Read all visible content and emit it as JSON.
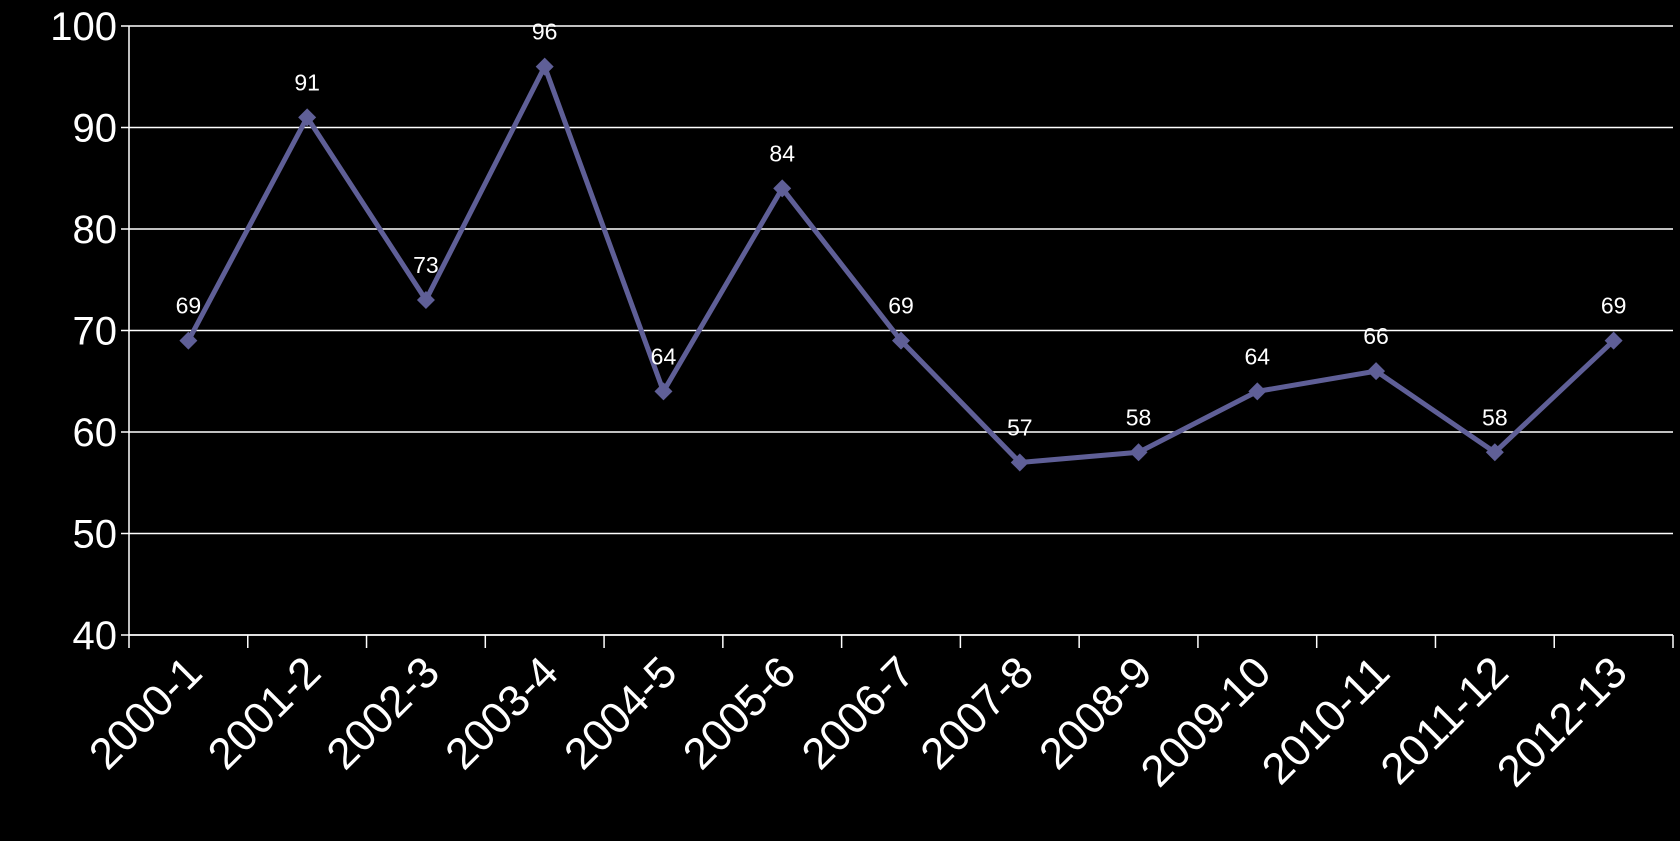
{
  "chart_data": {
    "type": "line",
    "categories": [
      "2000-1",
      "2001-2",
      "2002-3",
      "2003-4",
      "2004-5",
      "2005-6",
      "2006-7",
      "2007-8",
      "2008-9",
      "2009-10",
      "2010-11",
      "2011-12",
      "2012-13"
    ],
    "series": [
      {
        "values": [
          69,
          91,
          73,
          96,
          64,
          84,
          69,
          57,
          58,
          64,
          66,
          58,
          69
        ]
      }
    ],
    "ylim": [
      40,
      100
    ],
    "yticks": [
      40,
      50,
      60,
      70,
      80,
      90,
      100
    ],
    "grid": true,
    "data_labels": true,
    "legend": "none",
    "colors": {
      "background": "#000000",
      "line": "#5f5f97",
      "marker": "#5f5f97",
      "grid": "#ffffff",
      "text": "#ffffff"
    }
  }
}
